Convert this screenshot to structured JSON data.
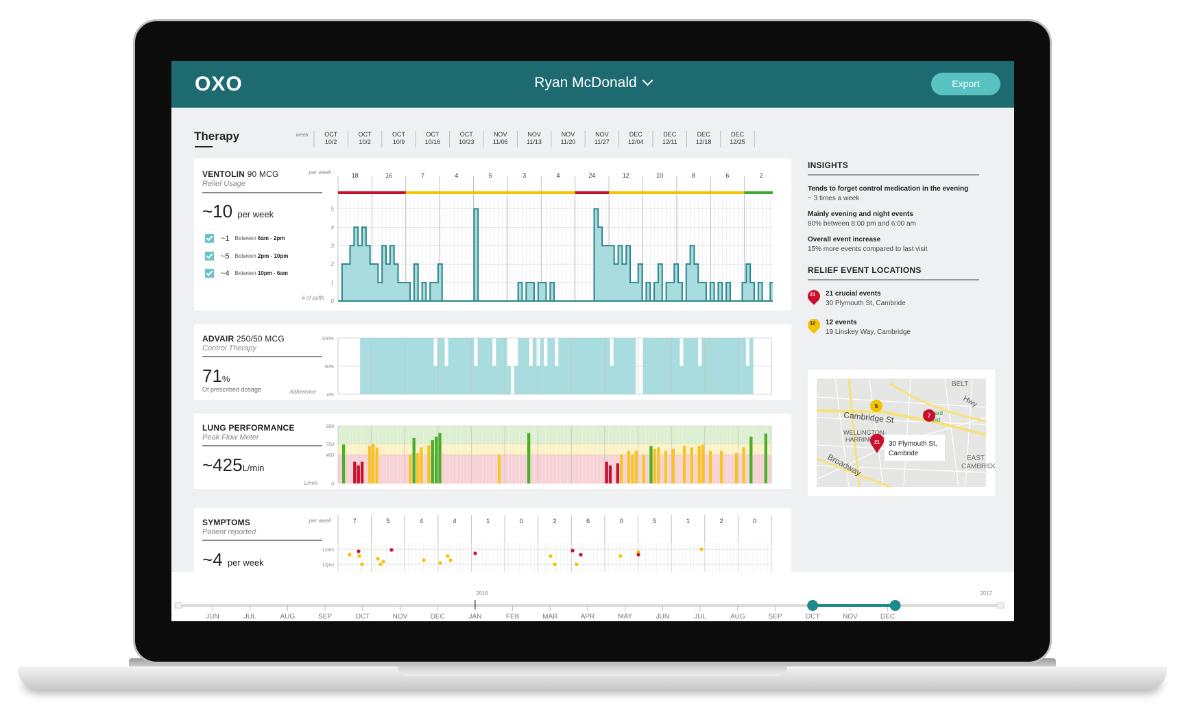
{
  "app": {
    "logo": "OXO",
    "patient_name": "Ryan McDonald",
    "export_label": "Export"
  },
  "therapy": {
    "title": "Therapy",
    "week_label": "week",
    "weeks": [
      {
        "month": "OCT",
        "day": "10/2"
      },
      {
        "month": "OCT",
        "day": "10/2"
      },
      {
        "month": "OCT",
        "day": "10/9"
      },
      {
        "month": "OCT",
        "day": "10/16"
      },
      {
        "month": "OCT",
        "day": "10/23"
      },
      {
        "month": "NOV",
        "day": "11/06"
      },
      {
        "month": "NOV",
        "day": "11/13"
      },
      {
        "month": "NOV",
        "day": "11/20"
      },
      {
        "month": "NOV",
        "day": "11/27"
      },
      {
        "month": "DEC",
        "day": "12/04"
      },
      {
        "month": "DEC",
        "day": "12/11"
      },
      {
        "month": "DEC",
        "day": "12/18"
      },
      {
        "month": "DEC",
        "day": "12/25"
      }
    ]
  },
  "ventolin": {
    "name": "VENTOLIN",
    "dose": "90 MCG",
    "subtitle": "Relief Usage",
    "big_value": "~10",
    "big_unit": "per week",
    "per_week_label": "per week",
    "y_axis_label": "# of puffs",
    "legend": [
      {
        "value": "~1",
        "prefix": "Between",
        "range": "6am - 2pm"
      },
      {
        "value": "~5",
        "prefix": "Between",
        "range": "2pm - 10pm"
      },
      {
        "value": "~4",
        "prefix": "Between",
        "range": "10pm - 6am"
      }
    ],
    "weekly_counts": [
      "18",
      "16",
      "7",
      "4",
      "5",
      "3",
      "4",
      "24",
      "12",
      "10",
      "8",
      "6",
      "2"
    ],
    "status_bars": [
      "#c8102e",
      "#c8102e",
      "#f2c400",
      "#f2c400",
      "#f2c400",
      "#f2c400",
      "#f2c400",
      "#c8102e",
      "#f2c400",
      "#f2c400",
      "#f2c400",
      "#f2c400",
      "#3aaa35"
    ],
    "y_ticks": [
      "0",
      "1",
      "2",
      "3",
      "4",
      "5"
    ],
    "daily_puffs": [
      0,
      2,
      2,
      3,
      4,
      3,
      4,
      3,
      2,
      2,
      1,
      3,
      2,
      3,
      2,
      1,
      1,
      1,
      0,
      2,
      0,
      1,
      0,
      1,
      1,
      2,
      0,
      0,
      0,
      0,
      0,
      0,
      0,
      0,
      5,
      0,
      0,
      0,
      0,
      0,
      0,
      0,
      0,
      0,
      0,
      1,
      0,
      1,
      1,
      0,
      1,
      1,
      0,
      1,
      0,
      0,
      0,
      0,
      0,
      0,
      0,
      0,
      0,
      0,
      5,
      4,
      3,
      3,
      3,
      2,
      3,
      2,
      3,
      1,
      1,
      2,
      0,
      1,
      0,
      1,
      2,
      0,
      1,
      1,
      2,
      1,
      0,
      2,
      3,
      2,
      1,
      1,
      0,
      1,
      0,
      1,
      0,
      1,
      0,
      0,
      0,
      1,
      2,
      1,
      0,
      1,
      0,
      0,
      1,
      0
    ],
    "colors": {
      "fill": "#a8dcdf",
      "line": "#27858c"
    }
  },
  "advair": {
    "name": "ADVAIR",
    "dose": "250/50 MCG",
    "subtitle": "Control Therapy",
    "big_value": "71",
    "big_unit": "%",
    "note": "Of prescribed dosage",
    "y_axis_label": "Adherence",
    "y_ticks": [
      "0%",
      "50%",
      "100%"
    ],
    "daily_adherence": [
      0,
      0,
      0,
      0,
      0,
      0,
      1,
      1,
      1,
      1,
      1,
      1,
      1,
      1,
      1,
      1,
      1,
      1,
      1,
      1,
      1,
      1,
      1,
      1,
      1,
      1,
      0.5,
      1,
      1,
      0.5,
      1,
      1,
      1,
      1,
      1,
      1,
      1,
      0.5,
      1,
      1,
      1,
      1,
      0.5,
      1,
      1,
      1,
      0.5,
      0,
      0.5,
      1,
      1,
      1,
      0.5,
      1,
      0.5,
      1,
      0.5,
      1,
      1,
      0.5,
      1,
      1,
      1,
      1,
      1,
      1,
      1,
      1,
      1,
      1,
      1,
      1,
      1,
      1,
      0.5,
      1,
      1,
      1,
      1,
      1,
      1,
      0,
      0,
      1,
      1,
      1,
      1,
      1,
      1,
      1,
      1,
      1,
      1,
      0.5,
      1,
      1,
      1,
      1,
      0.5,
      1,
      1,
      1,
      1,
      1,
      1,
      1,
      1,
      1,
      1,
      1,
      1,
      0.5,
      1,
      0,
      0,
      0,
      0,
      0
    ],
    "colors": {
      "fill": "#a8dcdf"
    }
  },
  "lung": {
    "name": "LUNG PERFORMANCE",
    "subtitle": "Peak Flow Meter",
    "big_value": "~425",
    "big_unit": "L/min",
    "y_axis_label": "L/min",
    "y_ticks": [
      "0",
      "400",
      "550",
      "800"
    ],
    "zones": {
      "green": "#dcefd1",
      "yellow": "#fbf3c7",
      "red": "#f6d2d6"
    },
    "readings": [
      {
        "day": 1,
        "value": 540,
        "zone": "green"
      },
      {
        "day": 4,
        "value": 300,
        "zone": "red"
      },
      {
        "day": 5,
        "value": 250,
        "zone": "red"
      },
      {
        "day": 6,
        "value": 300,
        "zone": "red"
      },
      {
        "day": 8,
        "value": 520,
        "zone": "yellow"
      },
      {
        "day": 9,
        "value": 550,
        "zone": "yellow"
      },
      {
        "day": 10,
        "value": 500,
        "zone": "yellow"
      },
      {
        "day": 19,
        "value": 400,
        "zone": "yellow"
      },
      {
        "day": 20,
        "value": 630,
        "zone": "green"
      },
      {
        "day": 21,
        "value": 420,
        "zone": "yellow"
      },
      {
        "day": 22,
        "value": 500,
        "zone": "yellow"
      },
      {
        "day": 24,
        "value": 530,
        "zone": "yellow"
      },
      {
        "day": 25,
        "value": 600,
        "zone": "green"
      },
      {
        "day": 26,
        "value": 650,
        "zone": "green"
      },
      {
        "day": 27,
        "value": 700,
        "zone": "green"
      },
      {
        "day": 43,
        "value": 400,
        "zone": "yellow"
      },
      {
        "day": 51,
        "value": 700,
        "zone": "green"
      },
      {
        "day": 72,
        "value": 300,
        "zone": "red"
      },
      {
        "day": 73,
        "value": 250,
        "zone": "red"
      },
      {
        "day": 75,
        "value": 280,
        "zone": "red"
      },
      {
        "day": 76,
        "value": 400,
        "zone": "yellow"
      },
      {
        "day": 78,
        "value": 450,
        "zone": "yellow"
      },
      {
        "day": 79,
        "value": 400,
        "zone": "yellow"
      },
      {
        "day": 80,
        "value": 450,
        "zone": "yellow"
      },
      {
        "day": 82,
        "value": 400,
        "zone": "yellow"
      },
      {
        "day": 84,
        "value": 520,
        "zone": "green"
      },
      {
        "day": 85,
        "value": 480,
        "zone": "yellow"
      },
      {
        "day": 86,
        "value": 500,
        "zone": "yellow"
      },
      {
        "day": 88,
        "value": 450,
        "zone": "yellow"
      },
      {
        "day": 90,
        "value": 480,
        "zone": "yellow"
      },
      {
        "day": 93,
        "value": 520,
        "zone": "yellow"
      },
      {
        "day": 95,
        "value": 500,
        "zone": "yellow"
      },
      {
        "day": 97,
        "value": 520,
        "zone": "yellow"
      },
      {
        "day": 98,
        "value": 540,
        "zone": "yellow"
      },
      {
        "day": 100,
        "value": 450,
        "zone": "yellow"
      },
      {
        "day": 103,
        "value": 450,
        "zone": "yellow"
      },
      {
        "day": 107,
        "value": 420,
        "zone": "yellow"
      },
      {
        "day": 109,
        "value": 500,
        "zone": "yellow"
      },
      {
        "day": 111,
        "value": 650,
        "zone": "green"
      },
      {
        "day": 115,
        "value": 690,
        "zone": "green"
      }
    ],
    "colors": {
      "green": "#4caf2a",
      "yellow": "#f7c22a",
      "red": "#c8102e"
    }
  },
  "symptoms": {
    "name": "SYMPTOMS",
    "subtitle": "Patient reported",
    "big_value": "~4",
    "big_unit": "per week",
    "per_week_label": "per week",
    "y_ticks": [
      "12am",
      "12pm"
    ],
    "weekly_counts": [
      "7",
      "5",
      "4",
      "4",
      "1",
      "0",
      "2",
      "6",
      "0",
      "5",
      "1",
      "2",
      "0"
    ]
  },
  "insights": {
    "title": "INSIGHTS",
    "items": [
      {
        "title": "Tends to forget control medication in the evening",
        "desc": "~ 3 times a week"
      },
      {
        "title": "Mainly evening and night events",
        "desc": "80% between 8:00 pm and 6:00 am"
      },
      {
        "title": "Overall event increase",
        "desc": "15% more events compared to last visit"
      }
    ]
  },
  "locations": {
    "title": "RELIEF EVENT LOCATIONS",
    "items": [
      {
        "badge": "21",
        "title": "21 crucial events",
        "address": "30 Plymouth St, Cambride",
        "color": "#c8102e"
      },
      {
        "badge": "12",
        "title": "12 events",
        "address": "19 Linskey Way, Cambridge",
        "color": "#f2c400"
      }
    ],
    "map": {
      "labels": [
        "BELT",
        "Cambridge St",
        "WELLINGTON-",
        "HARRINGTON",
        "Broadway",
        "EAST",
        "CAMBRIDG",
        "Orchard",
        "Field",
        "Hwy"
      ],
      "callout_line1": "30 Plymouth St,",
      "callout_line2": "Cambride",
      "pins": [
        {
          "badge": "5",
          "color": "#f2c400"
        },
        {
          "badge": "7",
          "color": "#c8102e"
        },
        {
          "badge": "21",
          "color": "#c8102e"
        }
      ]
    }
  },
  "timeline": {
    "year_start": "2016",
    "year_end": "2017",
    "months": [
      "JUN",
      "JUL",
      "AUG",
      "SEP",
      "OCT",
      "NOV",
      "DEC",
      "JAN",
      "FEB",
      "MAR",
      "APR",
      "MAY",
      "JUN",
      "JUL",
      "AUG",
      "SEP",
      "OCT",
      "NOV",
      "DEC"
    ],
    "accent": "#1d8a8d"
  }
}
